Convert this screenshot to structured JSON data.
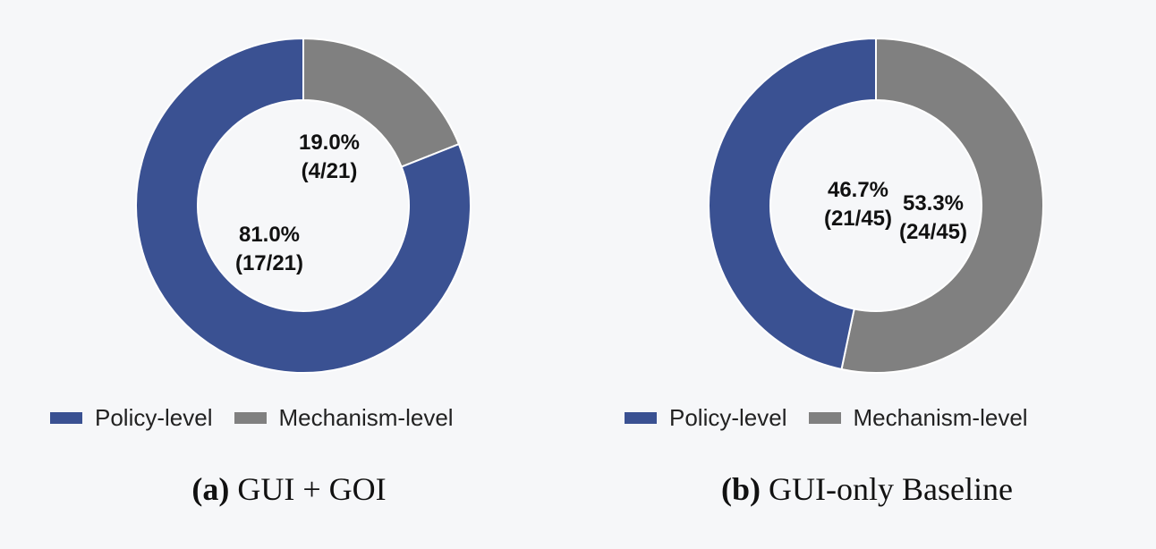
{
  "colors": {
    "policy": "#3a5192",
    "mechanism": "#808080",
    "divider": "#ffffff"
  },
  "chart_data": [
    {
      "type": "pie",
      "subtype": "donut",
      "caption_tag": "(a)",
      "caption_text": "GUI + GOI",
      "categories": [
        "Policy-level",
        "Mechanism-level"
      ],
      "values": [
        81.0,
        19.0
      ],
      "counts": [
        "17/21",
        "4/21"
      ],
      "value_labels": [
        "81.0%",
        "19.0%"
      ],
      "count_labels": [
        "(17/21)",
        "(4/21)"
      ],
      "legend": [
        "Policy-level",
        "Mechanism-level"
      ]
    },
    {
      "type": "pie",
      "subtype": "donut",
      "caption_tag": "(b)",
      "caption_text": "GUI-only Baseline",
      "categories": [
        "Policy-level",
        "Mechanism-level"
      ],
      "values": [
        46.7,
        53.3
      ],
      "counts": [
        "21/45",
        "24/45"
      ],
      "value_labels": [
        "46.7%",
        "53.3%"
      ],
      "count_labels": [
        "(21/45)",
        "(24/45)"
      ],
      "legend": [
        "Policy-level",
        "Mechanism-level"
      ]
    }
  ]
}
